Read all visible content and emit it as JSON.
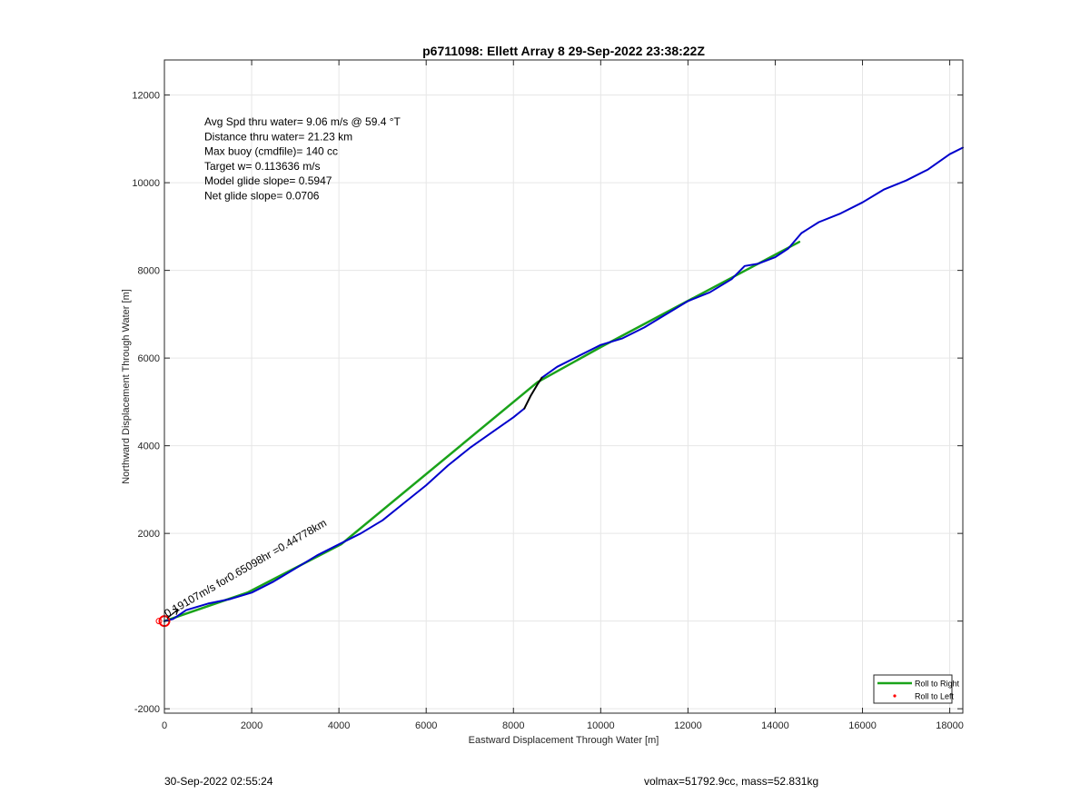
{
  "chart_data": {
    "type": "line",
    "title": "p6711098: Ellett Array 8 29-Sep-2022 23:38:22Z",
    "xlabel": "Eastward Displacement Through Water [m]",
    "ylabel": "Northward Displacement Through Water [m]",
    "xlim": [
      0,
      18300
    ],
    "ylim": [
      -2100,
      12800
    ],
    "xticks": [
      0,
      2000,
      4000,
      6000,
      8000,
      10000,
      12000,
      14000,
      16000,
      18000
    ],
    "yticks": [
      -2000,
      0,
      2000,
      4000,
      6000,
      8000,
      10000,
      12000
    ],
    "ytick_labels": [
      "-2000",
      "",
      "2000",
      "4000",
      "6000",
      "8000",
      "10000",
      "12000"
    ],
    "grid": true,
    "legend_position": "bottom-right",
    "legend": [
      {
        "label": "Roll to Right",
        "color": "#1aa31a",
        "marker": "line"
      },
      {
        "label": "Roll to Left",
        "color": "#ff0000",
        "marker": "dot"
      }
    ],
    "info_lines": [
      "Avg Spd thru water=  9.06 m/s @  59.4 °T",
      "Distance thru water= 21.23 km",
      "Max buoy (cmdfile)= 140 cc",
      "Target w= 0.113636 m/s",
      "Model glide slope= 0.5947",
      "Net glide slope= 0.0706"
    ],
    "annotation": {
      "text": "0.19107m/s for0.65098hr =0.44778km",
      "x": 60,
      "y": 80,
      "angle_deg": -30
    },
    "series": [
      {
        "color": "#1aa31a",
        "x": [
          0,
          1900,
          4050,
          8550,
          10000,
          14550
        ],
        "y": [
          0,
          650,
          1750,
          5450,
          6250,
          8650
        ]
      },
      {
        "color": "#0000cc",
        "x": [
          0,
          200,
          500,
          1000,
          1500,
          2000,
          2500,
          3000,
          3500,
          4000,
          4500,
          5000,
          5500,
          6000,
          6500,
          7000,
          7500,
          8000,
          8250
        ],
        "y": [
          0,
          50,
          250,
          400,
          500,
          650,
          900,
          1200,
          1500,
          1750,
          2000,
          2300,
          2700,
          3100,
          3550,
          3950,
          4300,
          4650,
          4850
        ]
      },
      {
        "color": "#0000cc",
        "x": [
          8650,
          9000,
          9500,
          10000,
          10500,
          11000,
          11500,
          12000,
          12500,
          13000,
          13300,
          13600,
          14000,
          14300,
          14600,
          15000,
          15500,
          16000,
          16500,
          17000,
          17500,
          18000,
          18300
        ],
        "y": [
          5550,
          5800,
          6050,
          6300,
          6450,
          6700,
          7000,
          7300,
          7500,
          7800,
          8100,
          8150,
          8300,
          8500,
          8850,
          9100,
          9300,
          9550,
          9850,
          10050,
          10300,
          10650,
          10800
        ]
      },
      {
        "color": "#000000",
        "x": [
          8250,
          8400,
          8550,
          8650
        ],
        "y": [
          4850,
          5150,
          5400,
          5550
        ]
      }
    ],
    "start_marker": {
      "x": 0,
      "y": 0,
      "color": "#ff0000"
    }
  },
  "footer": {
    "timestamp": "30-Sep-2022 02:55:24",
    "stats": "volmax=51792.9cc, mass=52.831kg"
  }
}
